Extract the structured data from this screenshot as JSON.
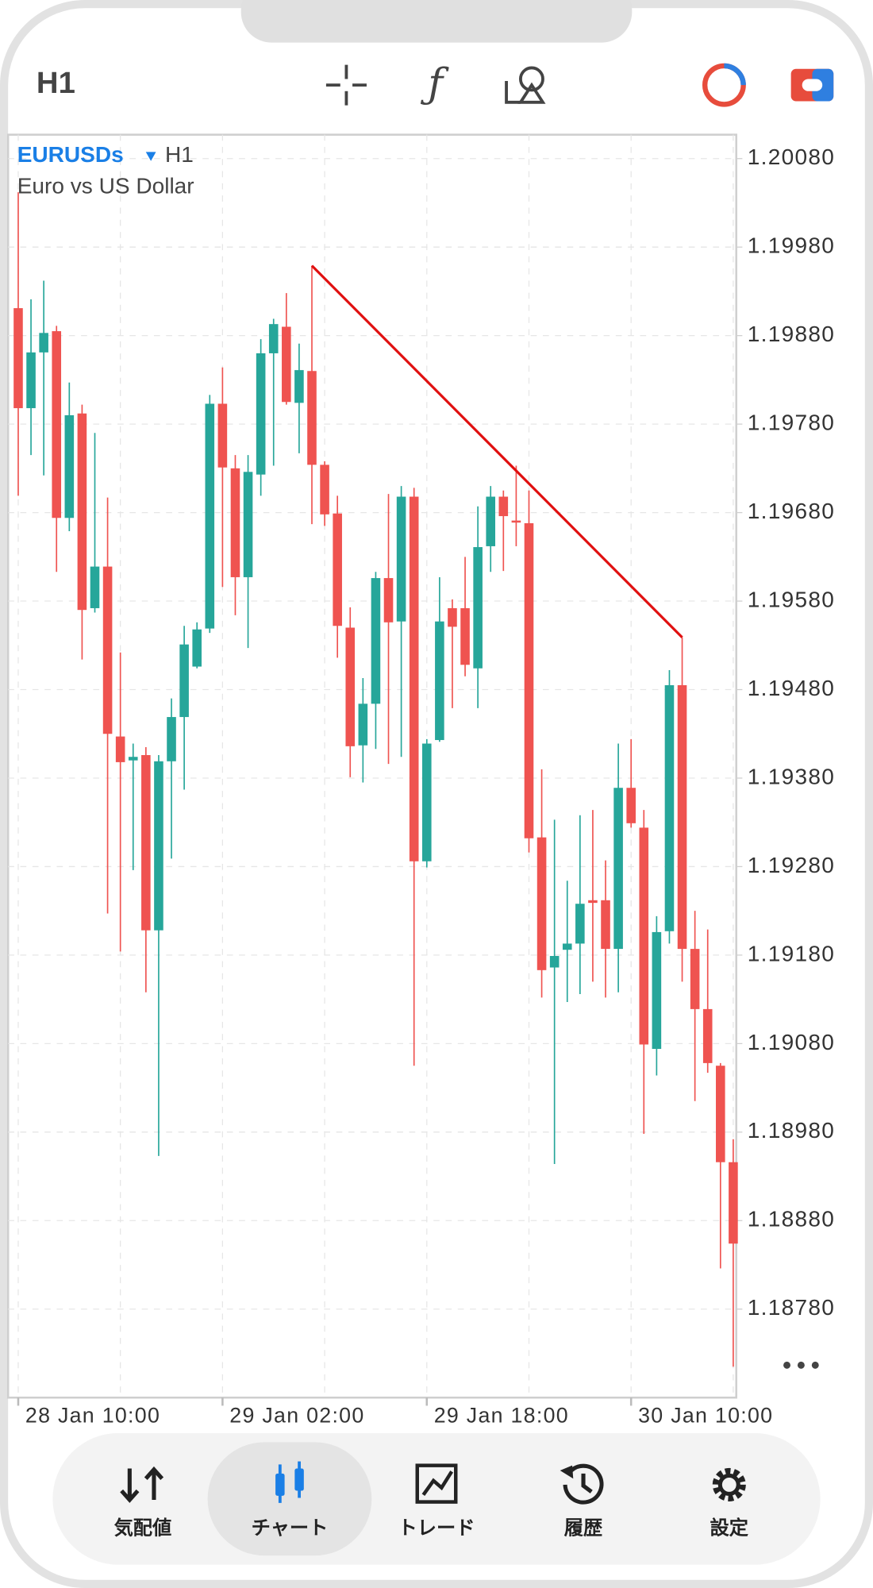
{
  "toolbar": {
    "timeframe": "H1"
  },
  "chart_data": {
    "type": "candlestick",
    "symbol": "EURUSDs",
    "timeframe": "H1",
    "description": "Euro vs US Dollar",
    "categories": [
      "28 Jan 10:00",
      null,
      null,
      null,
      null,
      null,
      null,
      null,
      null,
      null,
      null,
      null,
      null,
      null,
      null,
      null,
      "29 Jan 02:00",
      null,
      null,
      null,
      null,
      null,
      null,
      null,
      null,
      null,
      null,
      null,
      null,
      null,
      null,
      null,
      "29 Jan 18:00",
      null,
      null,
      null,
      null,
      null,
      null,
      null,
      null,
      null,
      null,
      null,
      null,
      null,
      null,
      null,
      "30 Jan 10:00",
      null,
      null,
      null,
      null,
      null,
      null,
      null,
      null
    ],
    "open": [
      1.19911,
      1.19798,
      1.19861,
      1.19885,
      1.19674,
      1.19792,
      1.19572,
      1.19619,
      1.19427,
      1.194,
      1.19406,
      1.19208,
      1.19399,
      1.19449,
      1.19506,
      1.19549,
      1.19803,
      1.1973,
      1.19607,
      1.19723,
      1.1986,
      1.1989,
      1.19804,
      1.1984,
      1.19734,
      1.19679,
      1.1955,
      1.19417,
      1.19464,
      1.19606,
      1.19557,
      1.19698,
      1.19286,
      1.19423,
      1.19572,
      1.19572,
      1.19504,
      1.19642,
      1.19698,
      1.19671,
      1.19668,
      1.19313,
      1.19166,
      1.19186,
      1.19193,
      1.19242,
      1.19242,
      1.19187,
      1.19369,
      1.19324,
      1.19074,
      1.19207,
      1.19485,
      1.19187,
      1.19119,
      1.19055,
      1.18946
    ],
    "high": [
      1.20042,
      1.19921,
      1.19942,
      1.19891,
      1.19827,
      1.19802,
      1.1977,
      1.19697,
      1.19522,
      1.19419,
      1.19415,
      1.19406,
      1.1947,
      1.19552,
      1.19556,
      1.19813,
      1.19844,
      1.19745,
      1.19745,
      1.19876,
      1.19899,
      1.19928,
      1.19871,
      1.19959,
      1.19738,
      1.19699,
      1.19573,
      1.19493,
      1.19613,
      1.19701,
      1.1971,
      1.19708,
      1.19424,
      1.19607,
      1.19582,
      1.1963,
      1.19687,
      1.1971,
      1.19705,
      1.19733,
      1.19705,
      1.1939,
      1.19333,
      1.19264,
      1.19338,
      1.19344,
      1.19287,
      1.19419,
      1.19424,
      1.19344,
      1.19224,
      1.19502,
      1.19539,
      1.1923,
      1.19209,
      1.19058,
      1.18972
    ],
    "low": [
      1.19699,
      1.19745,
      1.19722,
      1.19613,
      1.19659,
      1.19514,
      1.19567,
      1.19227,
      1.19184,
      1.19276,
      1.19138,
      1.18953,
      1.19289,
      1.19367,
      1.19504,
      1.19544,
      1.19596,
      1.19564,
      1.19527,
      1.19699,
      1.19733,
      1.19802,
      1.19747,
      1.19667,
      1.19665,
      1.19516,
      1.19381,
      1.19375,
      1.19413,
      1.19396,
      1.19404,
      1.19055,
      1.19279,
      1.19421,
      1.19459,
      1.19495,
      1.19459,
      1.19613,
      1.19614,
      1.19642,
      1.19296,
      1.19132,
      1.18944,
      1.19127,
      1.19136,
      1.1915,
      1.19132,
      1.19138,
      1.19324,
      1.18978,
      1.19044,
      1.19193,
      1.1915,
      1.19015,
      1.19047,
      1.18826,
      1.18715
    ],
    "close": [
      1.19798,
      1.19861,
      1.19883,
      1.19674,
      1.1979,
      1.1957,
      1.19619,
      1.1943,
      1.19398,
      1.19404,
      1.19208,
      1.19399,
      1.19449,
      1.19531,
      1.19548,
      1.19803,
      1.19731,
      1.19607,
      1.19726,
      1.1986,
      1.19893,
      1.19805,
      1.19841,
      1.19734,
      1.19678,
      1.19552,
      1.19416,
      1.19464,
      1.19606,
      1.19556,
      1.19698,
      1.19286,
      1.19419,
      1.19557,
      1.19551,
      1.19508,
      1.19641,
      1.19698,
      1.19676,
      1.19669,
      1.19312,
      1.19163,
      1.19179,
      1.19193,
      1.19238,
      1.19239,
      1.19187,
      1.19369,
      1.19329,
      1.19079,
      1.19206,
      1.19485,
      1.19187,
      1.19119,
      1.19058,
      1.18946,
      1.18854
    ],
    "up_color": "#26a69a",
    "down_color": "#ef5350",
    "ylim": [
      1.1868,
      1.20107
    ],
    "yticks": [
      {
        "value": 1.2008,
        "label": "1.20080"
      },
      {
        "value": 1.1998,
        "label": "1.19980"
      },
      {
        "value": 1.1988,
        "label": "1.19880"
      },
      {
        "value": 1.1978,
        "label": "1.19780"
      },
      {
        "value": 1.1968,
        "label": "1.19680"
      },
      {
        "value": 1.1958,
        "label": "1.19580"
      },
      {
        "value": 1.1948,
        "label": "1.19480"
      },
      {
        "value": 1.1938,
        "label": "1.19380"
      },
      {
        "value": 1.1928,
        "label": "1.19280"
      },
      {
        "value": 1.1918,
        "label": "1.19180"
      },
      {
        "value": 1.1908,
        "label": "1.19080"
      },
      {
        "value": 1.1898,
        "label": "1.18980"
      },
      {
        "value": 1.1888,
        "label": "1.18880"
      },
      {
        "value": 1.1878,
        "label": "1.18780"
      }
    ],
    "grid": true,
    "trendline": {
      "color": "#e01010",
      "x": [
        23,
        52
      ],
      "y": [
        1.19959,
        1.19539
      ]
    }
  },
  "nav": {
    "items": [
      {
        "label": "気配値"
      },
      {
        "label": "チャート"
      },
      {
        "label": "トレード"
      },
      {
        "label": "履歴"
      },
      {
        "label": "設定"
      }
    ],
    "active": 1
  }
}
